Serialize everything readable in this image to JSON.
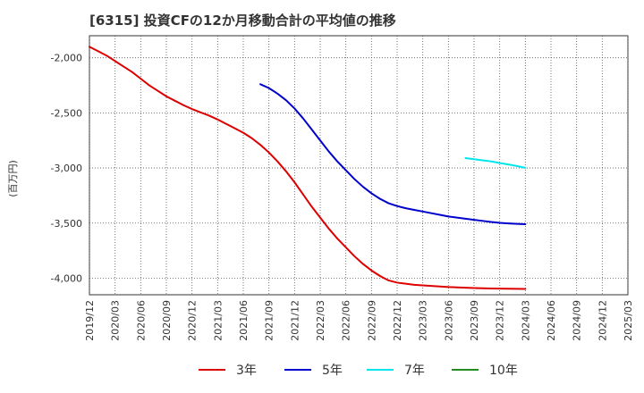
{
  "chart_data": {
    "type": "line",
    "title": "[6315]  投資CFの12か月移動合計の平均値の推移",
    "ylabel": "(百万円)",
    "xlabel": "",
    "ylim": [
      -4150,
      -1800
    ],
    "yticks": [
      -2000,
      -2500,
      -3000,
      -3500,
      -4000
    ],
    "ytick_labels": [
      "-2,000",
      "-2,500",
      "-3,000",
      "-3,500",
      "-4,000"
    ],
    "x_start": "2019/12",
    "x_end": "2025/03",
    "x_ticks": [
      "2019/12",
      "2020/03",
      "2020/06",
      "2020/09",
      "2020/12",
      "2021/03",
      "2021/06",
      "2021/09",
      "2021/12",
      "2022/03",
      "2022/06",
      "2022/09",
      "2022/12",
      "2023/03",
      "2023/06",
      "2023/09",
      "2023/12",
      "2024/03",
      "2024/06",
      "2024/09",
      "2024/12",
      "2025/03"
    ],
    "grid": true,
    "legend_position": "bottom",
    "series": [
      {
        "name": "3年",
        "color": "#dd0000",
        "points": [
          [
            "2019/12",
            -1900
          ],
          [
            "2020/01",
            -1940
          ],
          [
            "2020/02",
            -1980
          ],
          [
            "2020/03",
            -2030
          ],
          [
            "2020/04",
            -2080
          ],
          [
            "2020/05",
            -2130
          ],
          [
            "2020/06",
            -2190
          ],
          [
            "2020/07",
            -2250
          ],
          [
            "2020/08",
            -2300
          ],
          [
            "2020/09",
            -2350
          ],
          [
            "2020/10",
            -2390
          ],
          [
            "2020/11",
            -2430
          ],
          [
            "2020/12",
            -2465
          ],
          [
            "2021/01",
            -2495
          ],
          [
            "2021/02",
            -2525
          ],
          [
            "2021/03",
            -2560
          ],
          [
            "2021/04",
            -2600
          ],
          [
            "2021/05",
            -2640
          ],
          [
            "2021/06",
            -2680
          ],
          [
            "2021/07",
            -2730
          ],
          [
            "2021/08",
            -2790
          ],
          [
            "2021/09",
            -2860
          ],
          [
            "2021/10",
            -2940
          ],
          [
            "2021/11",
            -3030
          ],
          [
            "2021/12",
            -3130
          ],
          [
            "2022/01",
            -3240
          ],
          [
            "2022/02",
            -3350
          ],
          [
            "2022/03",
            -3450
          ],
          [
            "2022/04",
            -3550
          ],
          [
            "2022/05",
            -3640
          ],
          [
            "2022/06",
            -3720
          ],
          [
            "2022/07",
            -3800
          ],
          [
            "2022/08",
            -3870
          ],
          [
            "2022/09",
            -3930
          ],
          [
            "2022/10",
            -3980
          ],
          [
            "2022/11",
            -4020
          ],
          [
            "2022/12",
            -4040
          ],
          [
            "2023/01",
            -4050
          ],
          [
            "2023/02",
            -4060
          ],
          [
            "2023/03",
            -4065
          ],
          [
            "2023/04",
            -4070
          ],
          [
            "2023/05",
            -4075
          ],
          [
            "2023/06",
            -4080
          ],
          [
            "2023/07",
            -4083
          ],
          [
            "2023/08",
            -4086
          ],
          [
            "2023/09",
            -4089
          ],
          [
            "2023/10",
            -4091
          ],
          [
            "2023/11",
            -4093
          ],
          [
            "2023/12",
            -4094
          ],
          [
            "2024/01",
            -4095
          ],
          [
            "2024/02",
            -4096
          ],
          [
            "2024/03",
            -4097
          ]
        ]
      },
      {
        "name": "5年",
        "color": "#0000cc",
        "points": [
          [
            "2021/08",
            -2240
          ],
          [
            "2021/09",
            -2275
          ],
          [
            "2021/10",
            -2325
          ],
          [
            "2021/11",
            -2385
          ],
          [
            "2021/12",
            -2460
          ],
          [
            "2022/01",
            -2550
          ],
          [
            "2022/02",
            -2650
          ],
          [
            "2022/03",
            -2750
          ],
          [
            "2022/04",
            -2850
          ],
          [
            "2022/05",
            -2940
          ],
          [
            "2022/06",
            -3020
          ],
          [
            "2022/07",
            -3100
          ],
          [
            "2022/08",
            -3170
          ],
          [
            "2022/09",
            -3230
          ],
          [
            "2022/10",
            -3280
          ],
          [
            "2022/11",
            -3320
          ],
          [
            "2022/12",
            -3345
          ],
          [
            "2023/01",
            -3365
          ],
          [
            "2023/02",
            -3380
          ],
          [
            "2023/03",
            -3395
          ],
          [
            "2023/04",
            -3410
          ],
          [
            "2023/05",
            -3425
          ],
          [
            "2023/06",
            -3440
          ],
          [
            "2023/07",
            -3450
          ],
          [
            "2023/08",
            -3460
          ],
          [
            "2023/09",
            -3470
          ],
          [
            "2023/10",
            -3480
          ],
          [
            "2023/11",
            -3490
          ],
          [
            "2023/12",
            -3498
          ],
          [
            "2024/01",
            -3503
          ],
          [
            "2024/02",
            -3507
          ],
          [
            "2024/03",
            -3510
          ]
        ]
      },
      {
        "name": "7年",
        "color": "#00e5ee",
        "points": [
          [
            "2023/08",
            -2910
          ],
          [
            "2023/09",
            -2920
          ],
          [
            "2023/10",
            -2930
          ],
          [
            "2023/11",
            -2940
          ],
          [
            "2023/12",
            -2955
          ],
          [
            "2024/01",
            -2968
          ],
          [
            "2024/02",
            -2982
          ],
          [
            "2024/03",
            -2998
          ]
        ]
      },
      {
        "name": "10年",
        "color": "#228b22",
        "points": []
      }
    ]
  }
}
